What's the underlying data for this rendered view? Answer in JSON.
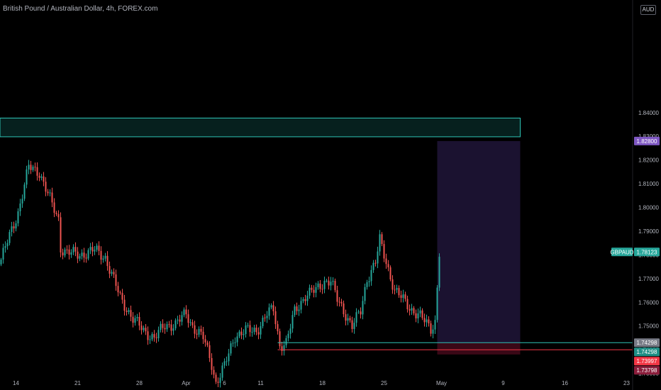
{
  "chart_title": "British Pound / Australian Dollar, 4h, FOREX.com",
  "currency_badge": "AUD",
  "symbol_tag": "GBPAUD",
  "colors": {
    "bull": "#26a69a",
    "bear": "#ef5350",
    "entry_line": "#2ec4b6",
    "stop_line": "#f23645",
    "target_badge": "#7e57c2",
    "symbol_badge": "#26a69a",
    "entry_badge": "#1f8f86",
    "stop_badge_a": "#f23645",
    "stop_badge_b": "#8b1d3b",
    "gray_badge": "#787b86",
    "supply_zone": "#06201e",
    "profit_zone": "#1b1230",
    "loss_zone": "#3a0816"
  },
  "chart_data": {
    "type": "candlestick",
    "title": "British Pound / Australian Dollar, 4h, FOREX.com",
    "ylim": [
      1.723,
      1.8875
    ],
    "y_ticks": [
      "1.73000",
      "1.74000",
      "1.75000",
      "1.76000",
      "1.77000",
      "1.78000",
      "1.79000",
      "1.80000",
      "1.81000",
      "1.82000",
      "1.83000",
      "1.84000"
    ],
    "x_ticks": [
      "14",
      "21",
      "28",
      "Apr",
      "6",
      "11",
      "18",
      "25",
      "May",
      "9",
      "16",
      "23"
    ],
    "price_labels": [
      {
        "text": "1.82800",
        "value": 1.828,
        "color_key": "target_badge"
      },
      {
        "text": "1.78123",
        "value": 1.78123,
        "color_key": "symbol_badge"
      },
      {
        "text": "1.74298",
        "value": 1.74298,
        "color_key": "gray_badge"
      },
      {
        "text": "1.74298",
        "value": 1.74298,
        "color_key": "entry_badge"
      },
      {
        "text": "1.73997",
        "value": 1.73997,
        "color_key": "stop_badge_a"
      },
      {
        "text": "1.73798",
        "value": 1.73798,
        "color_key": "stop_badge_b"
      }
    ],
    "supply_zone": {
      "from_index": 0,
      "to_index": 244,
      "low": 1.8298,
      "high": 1.8377
    },
    "trade_box": {
      "from_index": 205,
      "to_index": 244,
      "entry": 1.74298,
      "target": 1.828,
      "stop": 1.73798
    },
    "horizontal_lines": [
      {
        "value": 1.74298,
        "from_index": 130,
        "color_key": "entry_line"
      },
      {
        "value": 1.73997,
        "from_index": 130,
        "color_key": "stop_line"
      }
    ],
    "price_path": [
      [
        0,
        1.778
      ],
      [
        8,
        1.798
      ],
      [
        13,
        1.817
      ],
      [
        18,
        1.815
      ],
      [
        24,
        1.801
      ],
      [
        27,
        1.795
      ],
      [
        28,
        1.783
      ],
      [
        31,
        1.781
      ],
      [
        37,
        1.78
      ],
      [
        44,
        1.782
      ],
      [
        49,
        1.779
      ],
      [
        56,
        1.762
      ],
      [
        62,
        1.753
      ],
      [
        67,
        1.748
      ],
      [
        72,
        1.745
      ],
      [
        77,
        1.75
      ],
      [
        82,
        1.751
      ],
      [
        87,
        1.755
      ],
      [
        90,
        1.75
      ],
      [
        95,
        1.745
      ],
      [
        99,
        1.734
      ],
      [
        101,
        1.726
      ],
      [
        105,
        1.733
      ],
      [
        110,
        1.746
      ],
      [
        115,
        1.748
      ],
      [
        120,
        1.748
      ],
      [
        125,
        1.755
      ],
      [
        128,
        1.757
      ],
      [
        131,
        1.742
      ],
      [
        134,
        1.743
      ],
      [
        138,
        1.756
      ],
      [
        143,
        1.763
      ],
      [
        148,
        1.765
      ],
      [
        152,
        1.769
      ],
      [
        155,
        1.769
      ],
      [
        158,
        1.761
      ],
      [
        162,
        1.755
      ],
      [
        165,
        1.75
      ],
      [
        169,
        1.756
      ],
      [
        172,
        1.77
      ],
      [
        176,
        1.777
      ],
      [
        178,
        1.786
      ],
      [
        181,
        1.777
      ],
      [
        185,
        1.765
      ],
      [
        189,
        1.761
      ],
      [
        193,
        1.757
      ],
      [
        197,
        1.754
      ],
      [
        202,
        1.749
      ],
      [
        204,
        1.752
      ],
      [
        206,
        1.781
      ]
    ]
  }
}
